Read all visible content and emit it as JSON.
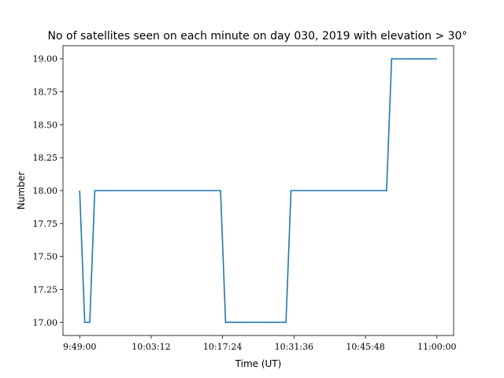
{
  "chart_data": {
    "type": "line",
    "title": "No of satellites seen on each minute on day 030, 2019 with elevation > 30°",
    "xlabel": "Time (UT)",
    "ylabel": "Number",
    "x_tick_labels": [
      "9:49:00",
      "10:03:12",
      "10:17:24",
      "10:31:36",
      "10:45:48",
      "11:00:00"
    ],
    "y_tick_labels": [
      "17.00",
      "17.25",
      "17.50",
      "17.75",
      "18.00",
      "18.25",
      "18.50",
      "18.75",
      "19.00"
    ],
    "y_ticks": [
      17.0,
      17.25,
      17.5,
      17.75,
      18.0,
      18.25,
      18.5,
      18.75,
      19.0
    ],
    "xlim": [
      "9:45:41",
      "11:03:19"
    ],
    "ylim": [
      16.9,
      19.1
    ],
    "grid": false,
    "line_color": "#1f77b4",
    "series": [
      {
        "x": [
          "9:49:00",
          "9:50:00",
          "9:51:00",
          "9:52:00",
          "10:17:00",
          "10:18:00",
          "10:30:00",
          "10:31:00",
          "10:50:00",
          "10:51:00",
          "11:00:00"
        ],
        "y": [
          18,
          17,
          17,
          18,
          18,
          17,
          17,
          18,
          18,
          19,
          19
        ]
      }
    ]
  }
}
